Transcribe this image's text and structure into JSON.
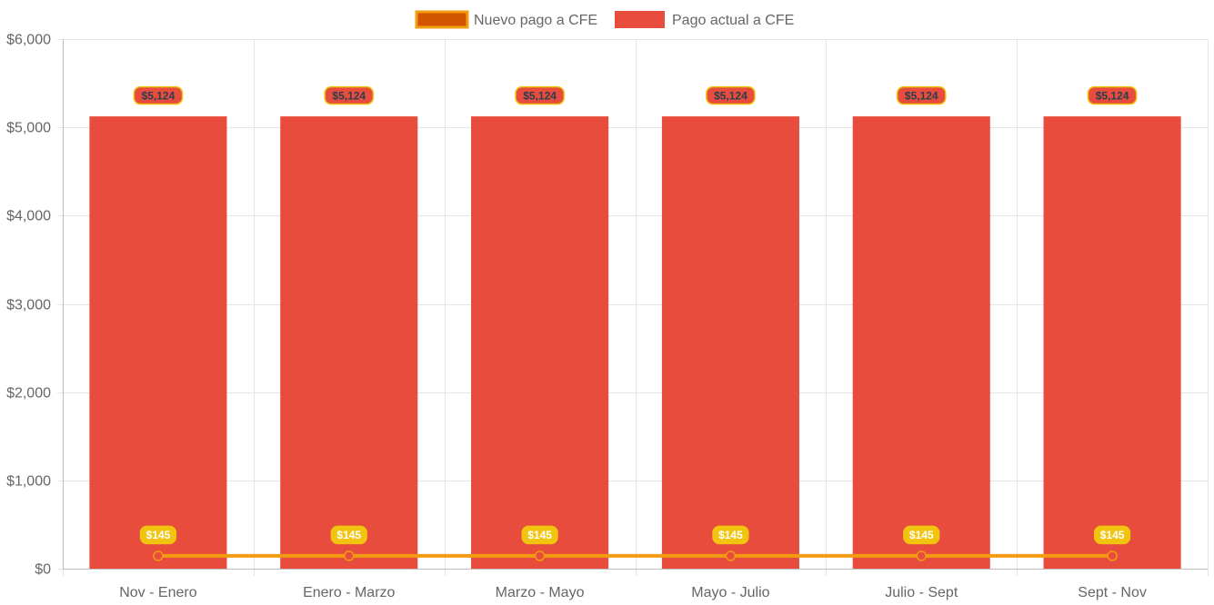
{
  "chart_data": {
    "type": "bar",
    "categories": [
      "Nov - Enero",
      "Enero - Marzo",
      "Marzo - Mayo",
      "Mayo - Julio",
      "Julio - Sept",
      "Sept - Nov"
    ],
    "series": [
      {
        "name": "Nuevo pago a CFE",
        "type": "line",
        "values": [
          145,
          145,
          145,
          145,
          145,
          145
        ],
        "labels": [
          "$145",
          "$145",
          "$145",
          "$145",
          "$145",
          "$145"
        ],
        "color": "#F39C12",
        "point_color": "#E74C3C",
        "legend_fill": "#D35400",
        "label_bg": "#F1C40F",
        "label_text": "#FFFFFF"
      },
      {
        "name": "Pago actual a CFE",
        "type": "bar",
        "values": [
          5124,
          5124,
          5124,
          5124,
          5124,
          5124
        ],
        "labels": [
          "$5,124",
          "$5,124",
          "$5,124",
          "$5,124",
          "$5,124",
          "$5,124"
        ],
        "color": "#E74C3C",
        "label_bg": "#E74C3C",
        "label_border": "#F1C40F",
        "label_text": "#2C3E50"
      }
    ],
    "y_ticks": [
      "$0",
      "$1,000",
      "$2,000",
      "$3,000",
      "$4,000",
      "$5,000",
      "$6,000"
    ],
    "ylim": [
      0,
      6000
    ],
    "y_step": 1000,
    "grid": true,
    "legend_position": "top-center",
    "grid_color": "#E5E5E5",
    "axis_text_color": "#666666"
  }
}
